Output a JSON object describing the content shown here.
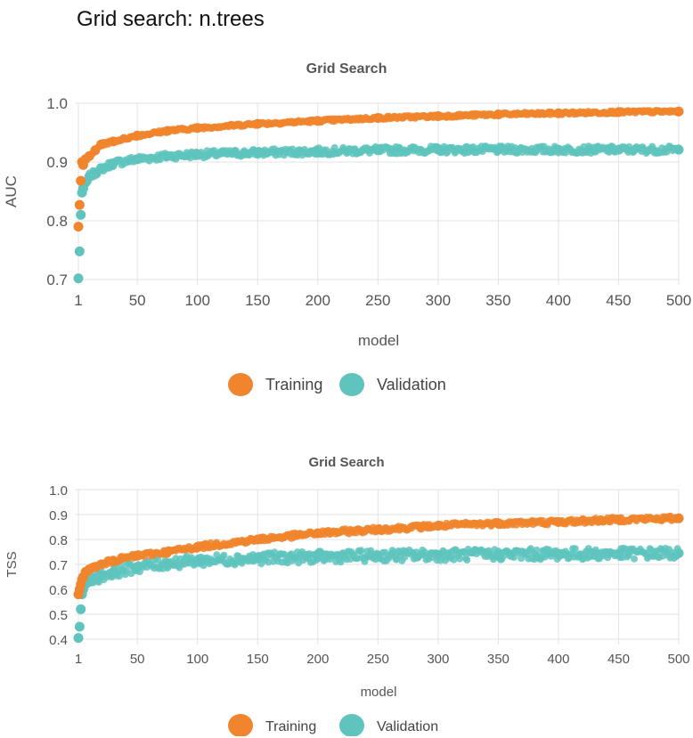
{
  "page": {
    "title": "Grid search: n.trees"
  },
  "colors": {
    "training": "#f0852d",
    "validation": "#5ec4bd",
    "grid": "#e3e3e3"
  },
  "chart_data": [
    {
      "type": "scatter",
      "title": "Grid Search",
      "xlabel": "model",
      "ylabel": "AUC",
      "xlim": [
        1,
        500
      ],
      "ylim": [
        0.7,
        1.0
      ],
      "x_ticks": [
        1,
        50,
        100,
        150,
        200,
        250,
        300,
        350,
        400,
        450,
        500
      ],
      "y_ticks": [
        "0.7",
        "0.8",
        "0.9",
        "1.0"
      ],
      "grid": true,
      "legend": "bottom-center",
      "series": [
        {
          "name": "Training",
          "color": "#f0852d",
          "x": [
            1,
            2,
            3,
            4,
            5,
            7,
            10,
            15,
            20,
            30,
            50,
            75,
            100,
            150,
            200,
            250,
            300,
            350,
            400,
            450,
            500
          ],
          "values": [
            0.79,
            0.827,
            0.868,
            0.9,
            0.895,
            0.905,
            0.91,
            0.92,
            0.93,
            0.935,
            0.945,
            0.953,
            0.958,
            0.965,
            0.97,
            0.975,
            0.978,
            0.981,
            0.983,
            0.985,
            0.986
          ]
        },
        {
          "name": "Validation",
          "color": "#5ec4bd",
          "x": [
            1,
            2,
            3,
            4,
            5,
            7,
            10,
            15,
            20,
            30,
            50,
            75,
            100,
            150,
            200,
            250,
            300,
            350,
            400,
            450,
            500
          ],
          "values": [
            0.702,
            0.748,
            0.81,
            0.848,
            0.855,
            0.865,
            0.875,
            0.882,
            0.888,
            0.898,
            0.905,
            0.91,
            0.913,
            0.916,
            0.918,
            0.92,
            0.921,
            0.921,
            0.921,
            0.921,
            0.921
          ]
        }
      ]
    },
    {
      "type": "scatter",
      "title": "Grid Search",
      "xlabel": "model",
      "ylabel": "TSS",
      "xlim": [
        1,
        500
      ],
      "ylim": [
        0.4,
        1.0
      ],
      "x_ticks": [
        1,
        50,
        100,
        150,
        200,
        250,
        300,
        350,
        400,
        450,
        500
      ],
      "y_ticks": [
        "0.4",
        "0.5",
        "0.6",
        "0.7",
        "0.8",
        "0.9",
        "1.0"
      ],
      "grid": true,
      "legend": "bottom-center",
      "series": [
        {
          "name": "Training",
          "color": "#f0852d",
          "x": [
            1,
            2,
            3,
            4,
            5,
            7,
            10,
            15,
            20,
            30,
            50,
            75,
            100,
            150,
            200,
            250,
            300,
            350,
            400,
            450,
            500
          ],
          "values": [
            0.58,
            0.6,
            0.62,
            0.64,
            0.65,
            0.67,
            0.68,
            0.69,
            0.7,
            0.715,
            0.735,
            0.75,
            0.77,
            0.8,
            0.825,
            0.84,
            0.855,
            0.865,
            0.87,
            0.88,
            0.885
          ]
        },
        {
          "name": "Validation",
          "color": "#5ec4bd",
          "x": [
            1,
            2,
            3,
            4,
            5,
            7,
            10,
            15,
            20,
            30,
            50,
            75,
            100,
            150,
            200,
            250,
            300,
            350,
            400,
            450,
            500
          ],
          "values": [
            0.405,
            0.45,
            0.52,
            0.58,
            0.6,
            0.62,
            0.63,
            0.645,
            0.655,
            0.67,
            0.69,
            0.705,
            0.715,
            0.725,
            0.73,
            0.735,
            0.738,
            0.74,
            0.742,
            0.743,
            0.745
          ]
        }
      ]
    }
  ]
}
